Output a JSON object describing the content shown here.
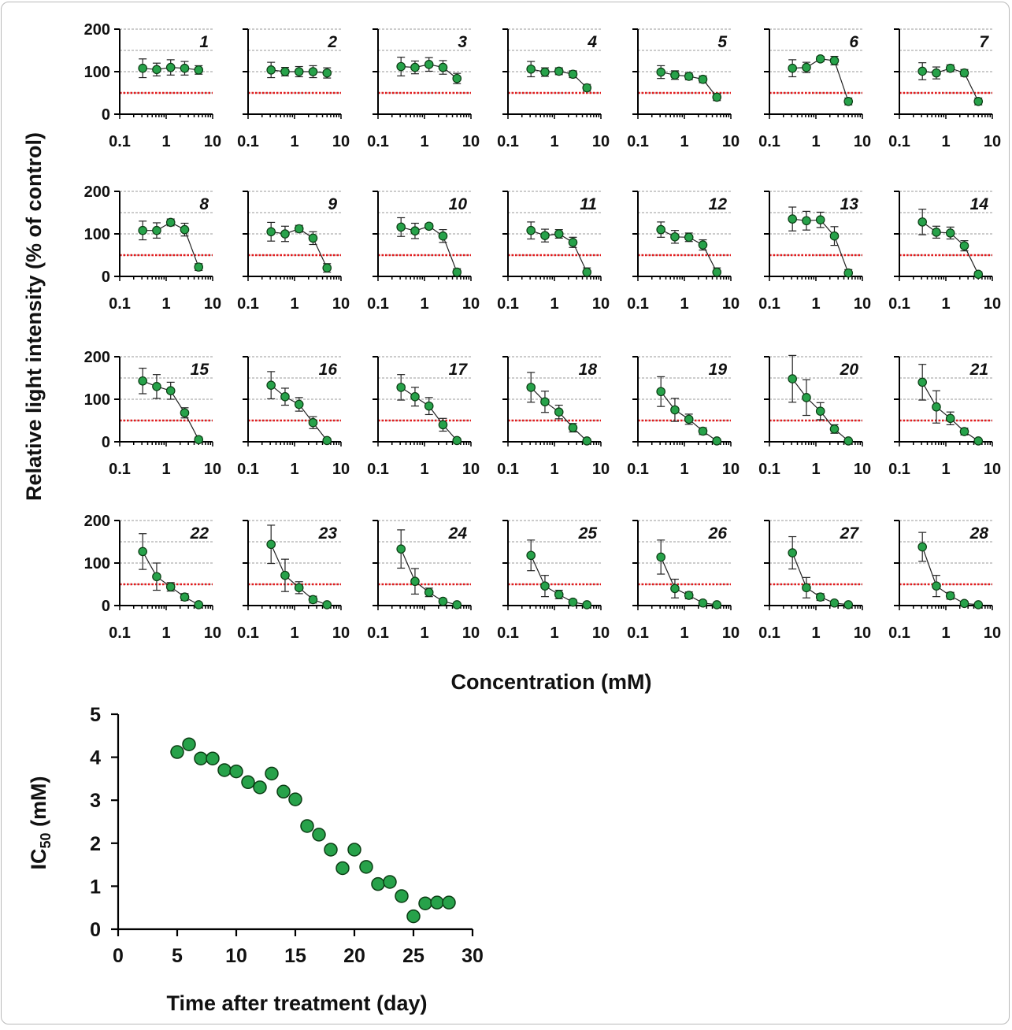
{
  "panels_axis": {
    "ylabel": "Relative light intensity (% of control)",
    "xlabel": "Concentration (mM)",
    "y_ticks": [
      "0",
      "100",
      "200"
    ],
    "x_ticks": [
      "0.1",
      "1",
      "10"
    ]
  },
  "ic50_axis": {
    "ylabel_main": "IC",
    "ylabel_sub": "50",
    "ylabel_unit": " (mM)",
    "xlabel": "Time after treatment (day)",
    "y_ticks": [
      "0",
      "1",
      "2",
      "3",
      "4",
      "5"
    ],
    "x_ticks": [
      "0",
      "5",
      "10",
      "15",
      "20",
      "25",
      "30"
    ]
  },
  "colors": {
    "marker_fill": "#27a24a",
    "marker_edge": "#0b3d14",
    "reference_line": "#e31a1c",
    "grid": "#9a9a9a",
    "frame_border": "#b9b9b9"
  },
  "chart_data": [
    {
      "type": "line",
      "description": "28 small dose-response panels, each on a log concentration axis",
      "x": [
        0.3125,
        0.625,
        1.25,
        2.5,
        5
      ],
      "xscale": "log",
      "xlim": [
        0.1,
        10
      ],
      "ylim": [
        0,
        200
      ],
      "grid": "horizontal dashed at 50, 100, 150, 200",
      "reference_line": 50,
      "panels": [
        {
          "label": "1",
          "y": [
            108,
            105,
            110,
            108,
            104
          ],
          "err": [
            22,
            15,
            18,
            16,
            10
          ]
        },
        {
          "label": "2",
          "y": [
            104,
            100,
            100,
            100,
            97
          ],
          "err": [
            18,
            10,
            12,
            14,
            12
          ]
        },
        {
          "label": "3",
          "y": [
            112,
            110,
            117,
            110,
            84
          ],
          "err": [
            22,
            15,
            16,
            16,
            12
          ]
        },
        {
          "label": "4",
          "y": [
            106,
            99,
            101,
            94,
            62
          ],
          "err": [
            18,
            10,
            8,
            8,
            8
          ]
        },
        {
          "label": "5",
          "y": [
            99,
            92,
            89,
            82,
            40
          ],
          "err": [
            15,
            10,
            8,
            8,
            8
          ]
        },
        {
          "label": "6",
          "y": [
            108,
            110,
            130,
            126,
            30
          ],
          "err": [
            20,
            12,
            6,
            10,
            8
          ]
        },
        {
          "label": "7",
          "y": [
            101,
            97,
            108,
            97,
            30
          ],
          "err": [
            20,
            14,
            8,
            8,
            8
          ]
        },
        {
          "label": "8",
          "y": [
            108,
            108,
            127,
            110,
            22
          ],
          "err": [
            22,
            18,
            8,
            15,
            8
          ]
        },
        {
          "label": "9",
          "y": [
            105,
            100,
            112,
            90,
            20
          ],
          "err": [
            22,
            18,
            8,
            15,
            10
          ]
        },
        {
          "label": "10",
          "y": [
            116,
            107,
            118,
            95,
            10
          ],
          "err": [
            22,
            18,
            6,
            15,
            8
          ]
        },
        {
          "label": "11",
          "y": [
            108,
            96,
            100,
            80,
            10
          ],
          "err": [
            20,
            15,
            10,
            12,
            10
          ]
        },
        {
          "label": "12",
          "y": [
            110,
            93,
            92,
            74,
            10
          ],
          "err": [
            18,
            15,
            10,
            12,
            10
          ]
        },
        {
          "label": "13",
          "y": [
            135,
            131,
            133,
            95,
            8
          ],
          "err": [
            28,
            22,
            18,
            22,
            8
          ]
        },
        {
          "label": "14",
          "y": [
            128,
            104,
            102,
            72,
            5
          ],
          "err": [
            30,
            14,
            14,
            12,
            6
          ]
        },
        {
          "label": "15",
          "y": [
            143,
            130,
            120,
            68,
            5
          ],
          "err": [
            30,
            28,
            20,
            12,
            6
          ]
        },
        {
          "label": "16",
          "y": [
            133,
            106,
            88,
            45,
            3
          ],
          "err": [
            32,
            20,
            16,
            14,
            4
          ]
        },
        {
          "label": "17",
          "y": [
            128,
            106,
            84,
            40,
            3
          ],
          "err": [
            30,
            22,
            20,
            15,
            4
          ]
        },
        {
          "label": "18",
          "y": [
            128,
            94,
            70,
            33,
            2
          ],
          "err": [
            35,
            25,
            16,
            10,
            3
          ]
        },
        {
          "label": "19",
          "y": [
            118,
            75,
            53,
            25,
            2
          ],
          "err": [
            35,
            27,
            12,
            8,
            3
          ]
        },
        {
          "label": "20",
          "y": [
            148,
            104,
            72,
            30,
            2
          ],
          "err": [
            55,
            42,
            20,
            10,
            3
          ]
        },
        {
          "label": "21",
          "y": [
            140,
            82,
            55,
            24,
            2
          ],
          "err": [
            42,
            38,
            15,
            8,
            3
          ]
        },
        {
          "label": "22",
          "y": [
            127,
            68,
            44,
            20,
            2
          ],
          "err": [
            42,
            32,
            10,
            8,
            3
          ]
        },
        {
          "label": "23",
          "y": [
            144,
            71,
            42,
            14,
            2
          ],
          "err": [
            45,
            38,
            14,
            8,
            3
          ]
        },
        {
          "label": "24",
          "y": [
            133,
            57,
            31,
            10,
            2
          ],
          "err": [
            45,
            30,
            10,
            6,
            3
          ]
        },
        {
          "label": "25",
          "y": [
            118,
            46,
            26,
            8,
            2
          ],
          "err": [
            36,
            25,
            10,
            6,
            3
          ]
        },
        {
          "label": "26",
          "y": [
            114,
            40,
            24,
            6,
            2
          ],
          "err": [
            40,
            22,
            8,
            5,
            3
          ]
        },
        {
          "label": "27",
          "y": [
            124,
            42,
            20,
            6,
            2
          ],
          "err": [
            38,
            24,
            8,
            5,
            3
          ]
        },
        {
          "label": "28",
          "y": [
            138,
            46,
            23,
            5,
            2
          ],
          "err": [
            34,
            25,
            8,
            5,
            3
          ]
        }
      ]
    },
    {
      "type": "scatter",
      "xlabel": "Time after treatment (day)",
      "ylabel": "IC50 (mM)",
      "xlim": [
        0,
        30
      ],
      "ylim": [
        0,
        5
      ],
      "x": [
        5,
        6,
        7,
        8,
        9,
        10,
        11,
        12,
        13,
        14,
        15,
        16,
        17,
        18,
        19,
        20,
        21,
        22,
        23,
        24,
        25,
        26,
        27,
        28
      ],
      "y": [
        4.12,
        4.3,
        3.97,
        3.97,
        3.7,
        3.67,
        3.42,
        3.3,
        3.62,
        3.2,
        3.02,
        2.4,
        2.2,
        1.85,
        1.42,
        1.85,
        1.45,
        1.05,
        1.1,
        0.77,
        0.3,
        0.6,
        0.62,
        0.62
      ]
    }
  ]
}
